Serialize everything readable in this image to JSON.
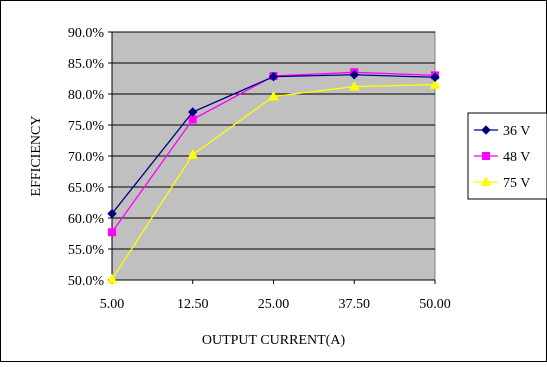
{
  "chart_data": {
    "type": "line",
    "title": "",
    "xlabel": "OUTPUT CURRENT(A)",
    "ylabel": "EFFICIENCY",
    "categories": [
      "5.00",
      "12.50",
      "25.00",
      "37.50",
      "50.00"
    ],
    "ylim": [
      0.5,
      0.9
    ],
    "yticks": [
      "50.0%",
      "55.0%",
      "60.0%",
      "65.0%",
      "70.0%",
      "75.0%",
      "80.0%",
      "85.0%",
      "90.0%"
    ],
    "grid": true,
    "legend_position": "right",
    "plot_background": "#c0c0c0",
    "series": [
      {
        "name": "36 V",
        "color": "#000080",
        "marker": "diamond",
        "values": [
          0.607,
          0.771,
          0.828,
          0.831,
          0.827
        ]
      },
      {
        "name": "48 V",
        "color": "#ff00ff",
        "marker": "square",
        "values": [
          0.577,
          0.759,
          0.829,
          0.835,
          0.83
        ]
      },
      {
        "name": "75 V",
        "color": "#ffff00",
        "marker": "triangle",
        "values": [
          0.501,
          0.702,
          0.796,
          0.812,
          0.815
        ]
      }
    ]
  }
}
